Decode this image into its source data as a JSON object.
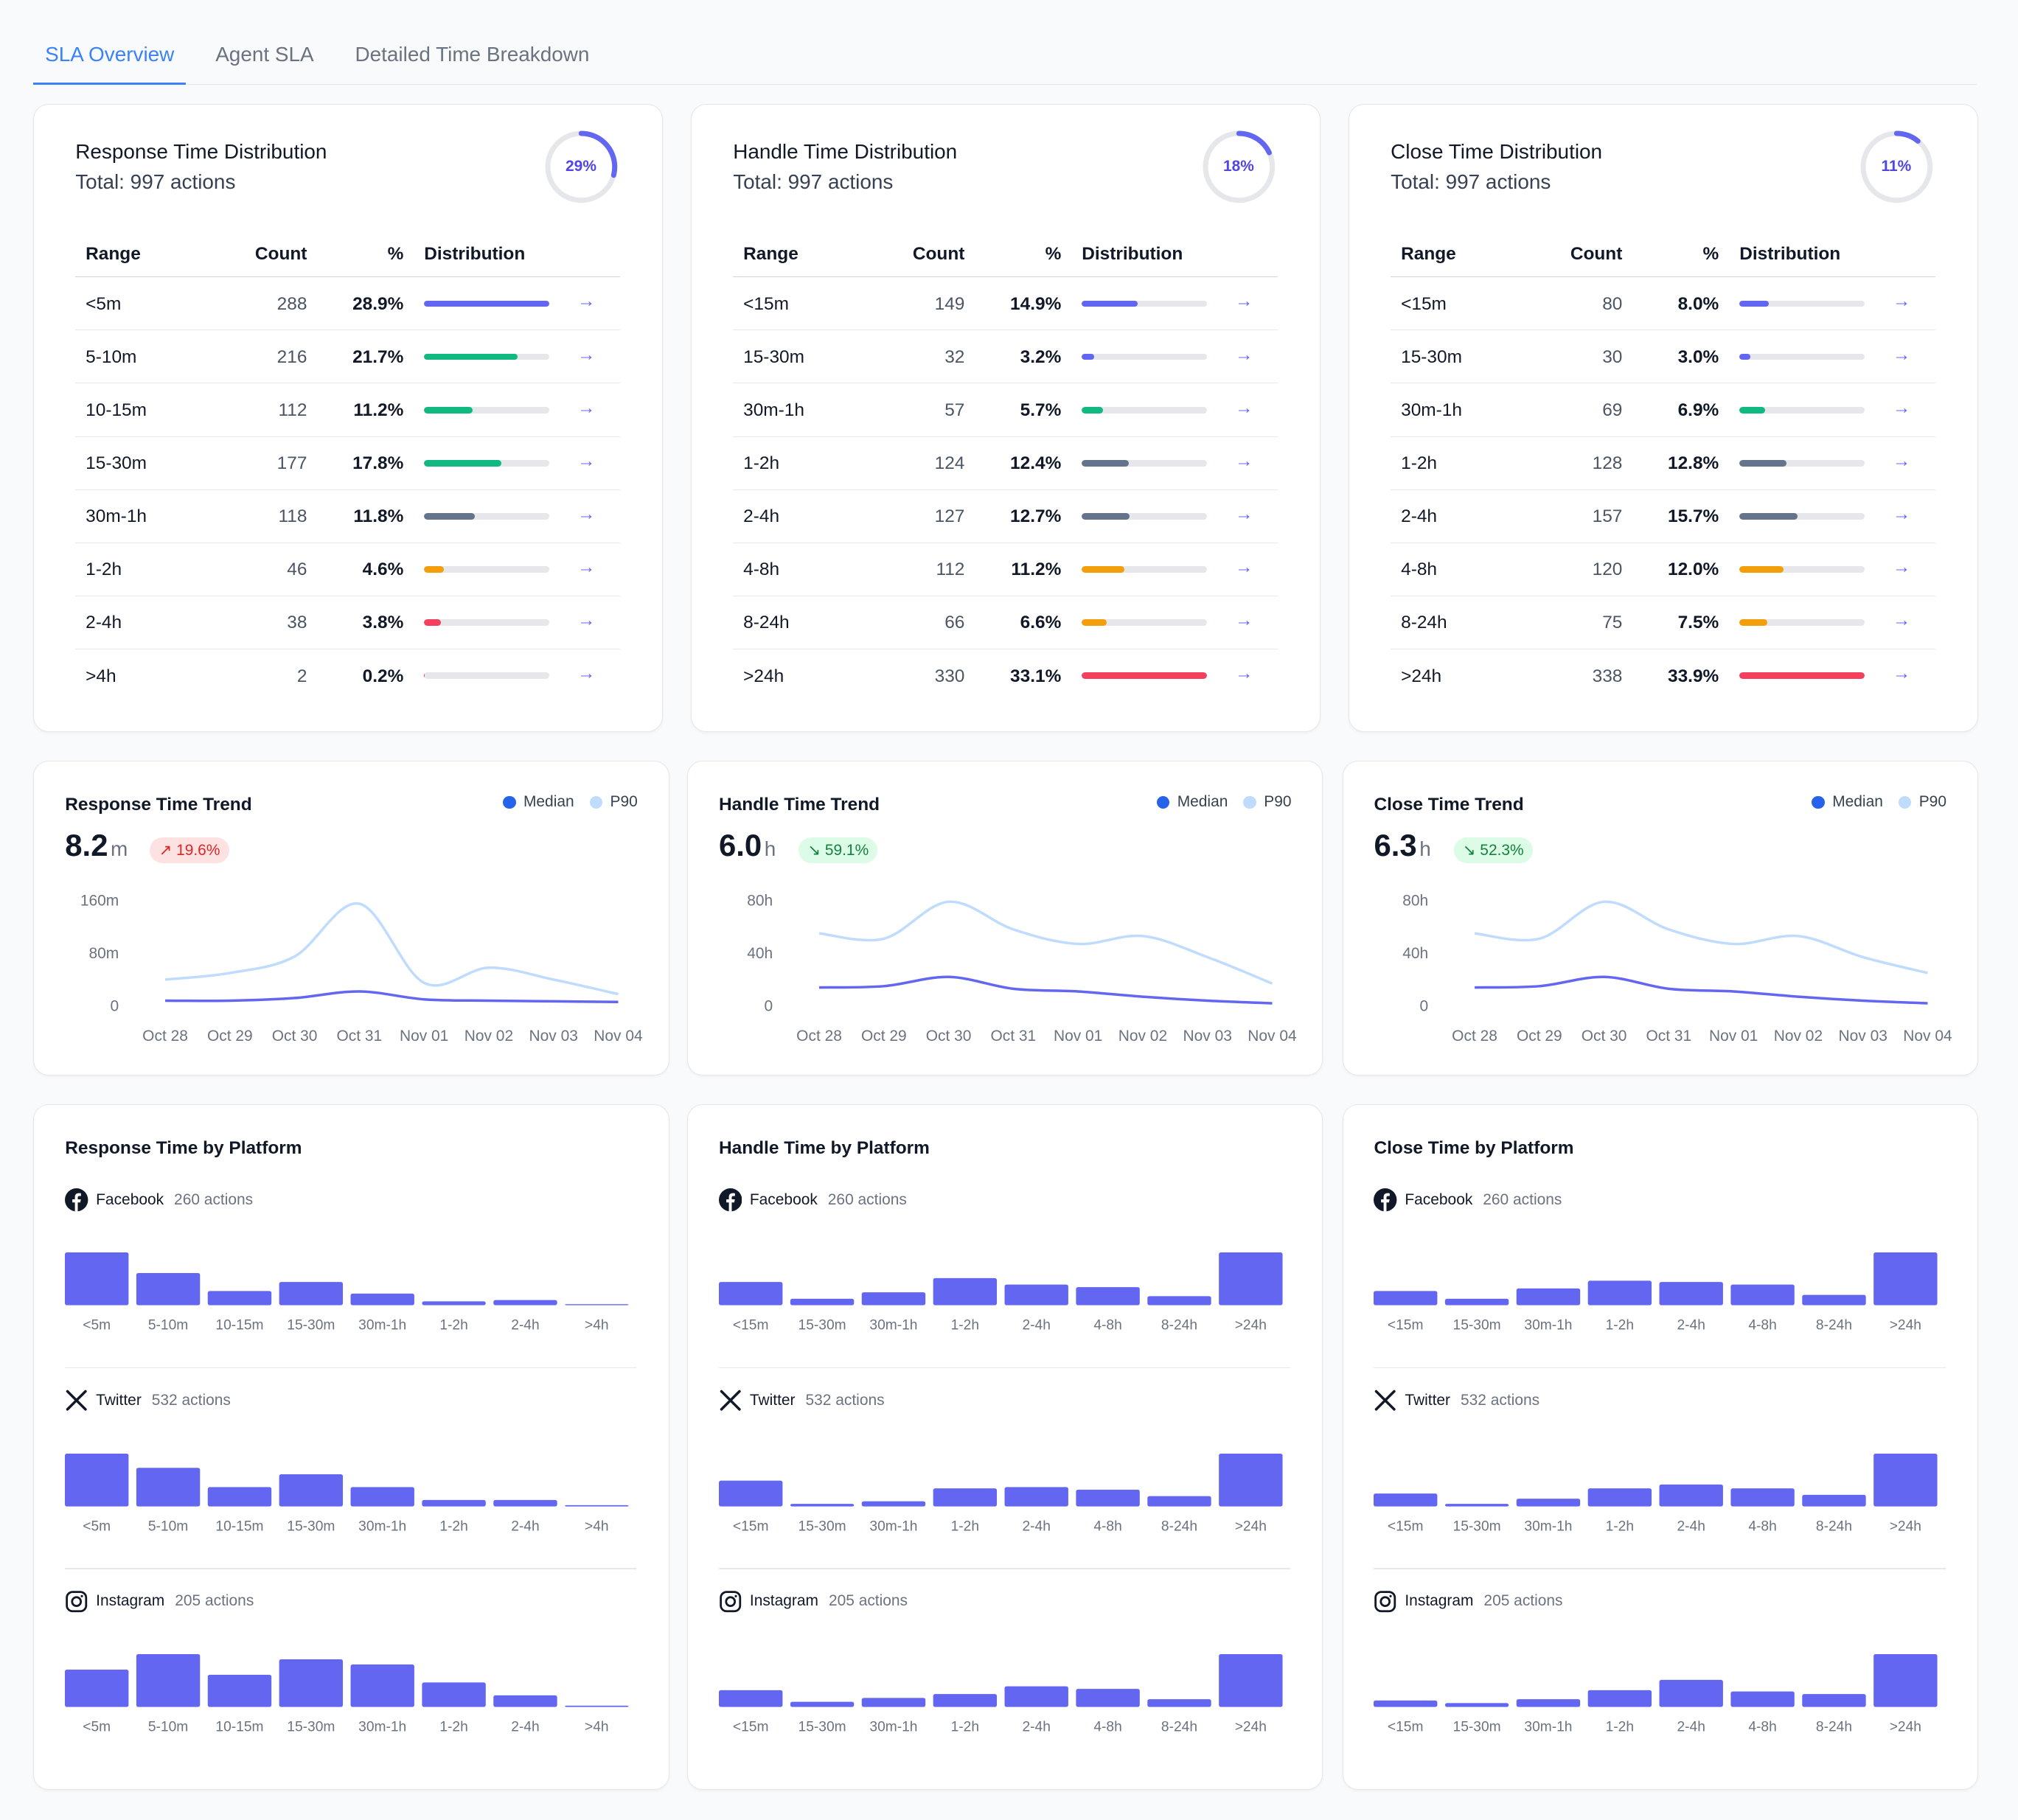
{
  "tabs": [
    {
      "label": "SLA Overview",
      "active": true
    },
    {
      "label": "Agent SLA",
      "active": false
    },
    {
      "label": "Detailed Time Breakdown",
      "active": false
    }
  ],
  "colors": {
    "accent": "#3b82f6",
    "indigo": "#6366f1",
    "green": "#10b981",
    "slate": "#64748b",
    "amber": "#f59e0b",
    "red": "#f43f5e",
    "median": "#6366f1",
    "median_legend": "#2563eb",
    "p90": "#bfdbfe"
  },
  "distributions": [
    {
      "title": "Response Time Distribution",
      "total": "Total: 997 actions",
      "ring_pct": 29,
      "ring_label": "29%",
      "columns": [
        "Range",
        "Count",
        "%",
        "Distribution"
      ],
      "rows": [
        {
          "range": "<5m",
          "count": "288",
          "pct": "28.9%",
          "value": 28.9,
          "color": "#6366f1"
        },
        {
          "range": "5-10m",
          "count": "216",
          "pct": "21.7%",
          "value": 21.7,
          "color": "#10b981"
        },
        {
          "range": "10-15m",
          "count": "112",
          "pct": "11.2%",
          "value": 11.2,
          "color": "#10b981"
        },
        {
          "range": "15-30m",
          "count": "177",
          "pct": "17.8%",
          "value": 17.8,
          "color": "#10b981"
        },
        {
          "range": "30m-1h",
          "count": "118",
          "pct": "11.8%",
          "value": 11.8,
          "color": "#64748b"
        },
        {
          "range": "1-2h",
          "count": "46",
          "pct": "4.6%",
          "value": 4.6,
          "color": "#f59e0b"
        },
        {
          "range": "2-4h",
          "count": "38",
          "pct": "3.8%",
          "value": 3.8,
          "color": "#f43f5e"
        },
        {
          "range": ">4h",
          "count": "2",
          "pct": "0.2%",
          "value": 0.2,
          "color": "#f43f5e"
        }
      ]
    },
    {
      "title": "Handle Time Distribution",
      "total": "Total: 997 actions",
      "ring_pct": 18,
      "ring_label": "18%",
      "columns": [
        "Range",
        "Count",
        "%",
        "Distribution"
      ],
      "rows": [
        {
          "range": "<15m",
          "count": "149",
          "pct": "14.9%",
          "value": 14.9,
          "color": "#6366f1"
        },
        {
          "range": "15-30m",
          "count": "32",
          "pct": "3.2%",
          "value": 3.2,
          "color": "#6366f1"
        },
        {
          "range": "30m-1h",
          "count": "57",
          "pct": "5.7%",
          "value": 5.7,
          "color": "#10b981"
        },
        {
          "range": "1-2h",
          "count": "124",
          "pct": "12.4%",
          "value": 12.4,
          "color": "#64748b"
        },
        {
          "range": "2-4h",
          "count": "127",
          "pct": "12.7%",
          "value": 12.7,
          "color": "#64748b"
        },
        {
          "range": "4-8h",
          "count": "112",
          "pct": "11.2%",
          "value": 11.2,
          "color": "#f59e0b"
        },
        {
          "range": "8-24h",
          "count": "66",
          "pct": "6.6%",
          "value": 6.6,
          "color": "#f59e0b"
        },
        {
          "range": ">24h",
          "count": "330",
          "pct": "33.1%",
          "value": 33.1,
          "color": "#f43f5e"
        }
      ]
    },
    {
      "title": "Close Time Distribution",
      "total": "Total: 997 actions",
      "ring_pct": 11,
      "ring_label": "11%",
      "columns": [
        "Range",
        "Count",
        "%",
        "Distribution"
      ],
      "rows": [
        {
          "range": "<15m",
          "count": "80",
          "pct": "8.0%",
          "value": 8.0,
          "color": "#6366f1"
        },
        {
          "range": "15-30m",
          "count": "30",
          "pct": "3.0%",
          "value": 3.0,
          "color": "#6366f1"
        },
        {
          "range": "30m-1h",
          "count": "69",
          "pct": "6.9%",
          "value": 6.9,
          "color": "#10b981"
        },
        {
          "range": "1-2h",
          "count": "128",
          "pct": "12.8%",
          "value": 12.8,
          "color": "#64748b"
        },
        {
          "range": "2-4h",
          "count": "157",
          "pct": "15.7%",
          "value": 15.7,
          "color": "#64748b"
        },
        {
          "range": "4-8h",
          "count": "120",
          "pct": "12.0%",
          "value": 12.0,
          "color": "#f59e0b"
        },
        {
          "range": "8-24h",
          "count": "75",
          "pct": "7.5%",
          "value": 7.5,
          "color": "#f59e0b"
        },
        {
          "range": ">24h",
          "count": "338",
          "pct": "33.9%",
          "value": 33.9,
          "color": "#f43f5e"
        }
      ]
    }
  ],
  "chart_data": [
    {
      "type": "line",
      "title": "Response Time Trend",
      "headline_value": "8.2",
      "headline_unit": "m",
      "change": "19.6%",
      "change_direction": "up",
      "x": [
        "Oct 28",
        "Oct 29",
        "Oct 30",
        "Oct 31",
        "Nov 01",
        "Nov 02",
        "Nov 03",
        "Nov 04"
      ],
      "yticks": [
        "160m",
        "80m",
        "0"
      ],
      "ylim": [
        0,
        160
      ],
      "series": [
        {
          "name": "Median",
          "values": [
            8,
            8,
            12,
            22,
            10,
            8,
            7,
            6
          ]
        },
        {
          "name": "P90",
          "values": [
            40,
            50,
            75,
            155,
            35,
            58,
            40,
            18
          ]
        }
      ]
    },
    {
      "type": "line",
      "title": "Handle Time Trend",
      "headline_value": "6.0",
      "headline_unit": "h",
      "change": "59.1%",
      "change_direction": "down",
      "x": [
        "Oct 28",
        "Oct 29",
        "Oct 30",
        "Oct 31",
        "Nov 01",
        "Nov 02",
        "Nov 03",
        "Nov 04"
      ],
      "yticks": [
        "80h",
        "40h",
        "0"
      ],
      "ylim": [
        0,
        80
      ],
      "series": [
        {
          "name": "Median",
          "values": [
            14,
            15,
            22,
            13,
            11,
            7,
            4,
            2
          ]
        },
        {
          "name": "P90",
          "values": [
            55,
            51,
            79,
            58,
            47,
            53,
            37,
            17
          ]
        }
      ]
    },
    {
      "type": "line",
      "title": "Close Time Trend",
      "headline_value": "6.3",
      "headline_unit": "h",
      "change": "52.3%",
      "change_direction": "down",
      "x": [
        "Oct 28",
        "Oct 29",
        "Oct 30",
        "Oct 31",
        "Nov 01",
        "Nov 02",
        "Nov 03",
        "Nov 04"
      ],
      "yticks": [
        "80h",
        "40h",
        "0"
      ],
      "ylim": [
        0,
        80
      ],
      "series": [
        {
          "name": "Median",
          "values": [
            14,
            15,
            22,
            13,
            11,
            7,
            4,
            2
          ]
        },
        {
          "name": "P90",
          "values": [
            55,
            51,
            79,
            58,
            47,
            53,
            37,
            25
          ]
        }
      ]
    },
    {
      "type": "bar",
      "title": "Response Time by Platform",
      "platforms": [
        {
          "name": "Facebook",
          "count": "260 actions",
          "icon": "facebook-icon",
          "categories": [
            "<5m",
            "5-10m",
            "10-15m",
            "15-30m",
            "30m-1h",
            "1-2h",
            "2-4h",
            ">4h"
          ],
          "values": [
            41,
            25,
            11,
            18,
            9,
            3,
            4,
            0
          ]
        },
        {
          "name": "Twitter",
          "count": "532 actions",
          "icon": "twitter-x-icon",
          "categories": [
            "<5m",
            "5-10m",
            "10-15m",
            "15-30m",
            "30m-1h",
            "1-2h",
            "2-4h",
            ">4h"
          ],
          "values": [
            41,
            30,
            15,
            25,
            15,
            5,
            5,
            1
          ]
        },
        {
          "name": "Instagram",
          "count": "205 actions",
          "icon": "instagram-icon",
          "categories": [
            "<5m",
            "5-10m",
            "10-15m",
            "15-30m",
            "30m-1h",
            "1-2h",
            "2-4h",
            ">4h"
          ],
          "values": [
            29,
            41,
            25,
            37,
            33,
            19,
            9,
            1
          ]
        }
      ]
    },
    {
      "type": "bar",
      "title": "Handle Time by Platform",
      "platforms": [
        {
          "name": "Facebook",
          "count": "260 actions",
          "icon": "facebook-icon",
          "categories": [
            "<15m",
            "15-30m",
            "30m-1h",
            "1-2h",
            "2-4h",
            "4-8h",
            "8-24h",
            ">24h"
          ],
          "values": [
            18,
            5,
            10,
            21,
            16,
            14,
            7,
            41
          ]
        },
        {
          "name": "Twitter",
          "count": "532 actions",
          "icon": "twitter-x-icon",
          "categories": [
            "<15m",
            "15-30m",
            "30m-1h",
            "1-2h",
            "2-4h",
            "4-8h",
            "8-24h",
            ">24h"
          ],
          "values": [
            20,
            2,
            4,
            14,
            15,
            13,
            8,
            41
          ]
        },
        {
          "name": "Instagram",
          "count": "205 actions",
          "icon": "instagram-icon",
          "categories": [
            "<15m",
            "15-30m",
            "30m-1h",
            "1-2h",
            "2-4h",
            "4-8h",
            "8-24h",
            ">24h"
          ],
          "values": [
            13,
            4,
            7,
            10,
            16,
            14,
            6,
            41
          ]
        }
      ]
    },
    {
      "type": "bar",
      "title": "Close Time by Platform",
      "platforms": [
        {
          "name": "Facebook",
          "count": "260 actions",
          "icon": "facebook-icon",
          "categories": [
            "<15m",
            "15-30m",
            "30m-1h",
            "1-2h",
            "2-4h",
            "4-8h",
            "8-24h",
            ">24h"
          ],
          "values": [
            11,
            5,
            13,
            19,
            18,
            16,
            8,
            41
          ]
        },
        {
          "name": "Twitter",
          "count": "532 actions",
          "icon": "twitter-x-icon",
          "categories": [
            "<15m",
            "15-30m",
            "30m-1h",
            "1-2h",
            "2-4h",
            "4-8h",
            "8-24h",
            ">24h"
          ],
          "values": [
            10,
            2,
            6,
            14,
            17,
            14,
            9,
            41
          ]
        },
        {
          "name": "Instagram",
          "count": "205 actions",
          "icon": "instagram-icon",
          "categories": [
            "<15m",
            "15-30m",
            "30m-1h",
            "1-2h",
            "2-4h",
            "4-8h",
            "8-24h",
            ">24h"
          ],
          "values": [
            5,
            3,
            6,
            13,
            21,
            12,
            10,
            41
          ]
        }
      ]
    }
  ]
}
